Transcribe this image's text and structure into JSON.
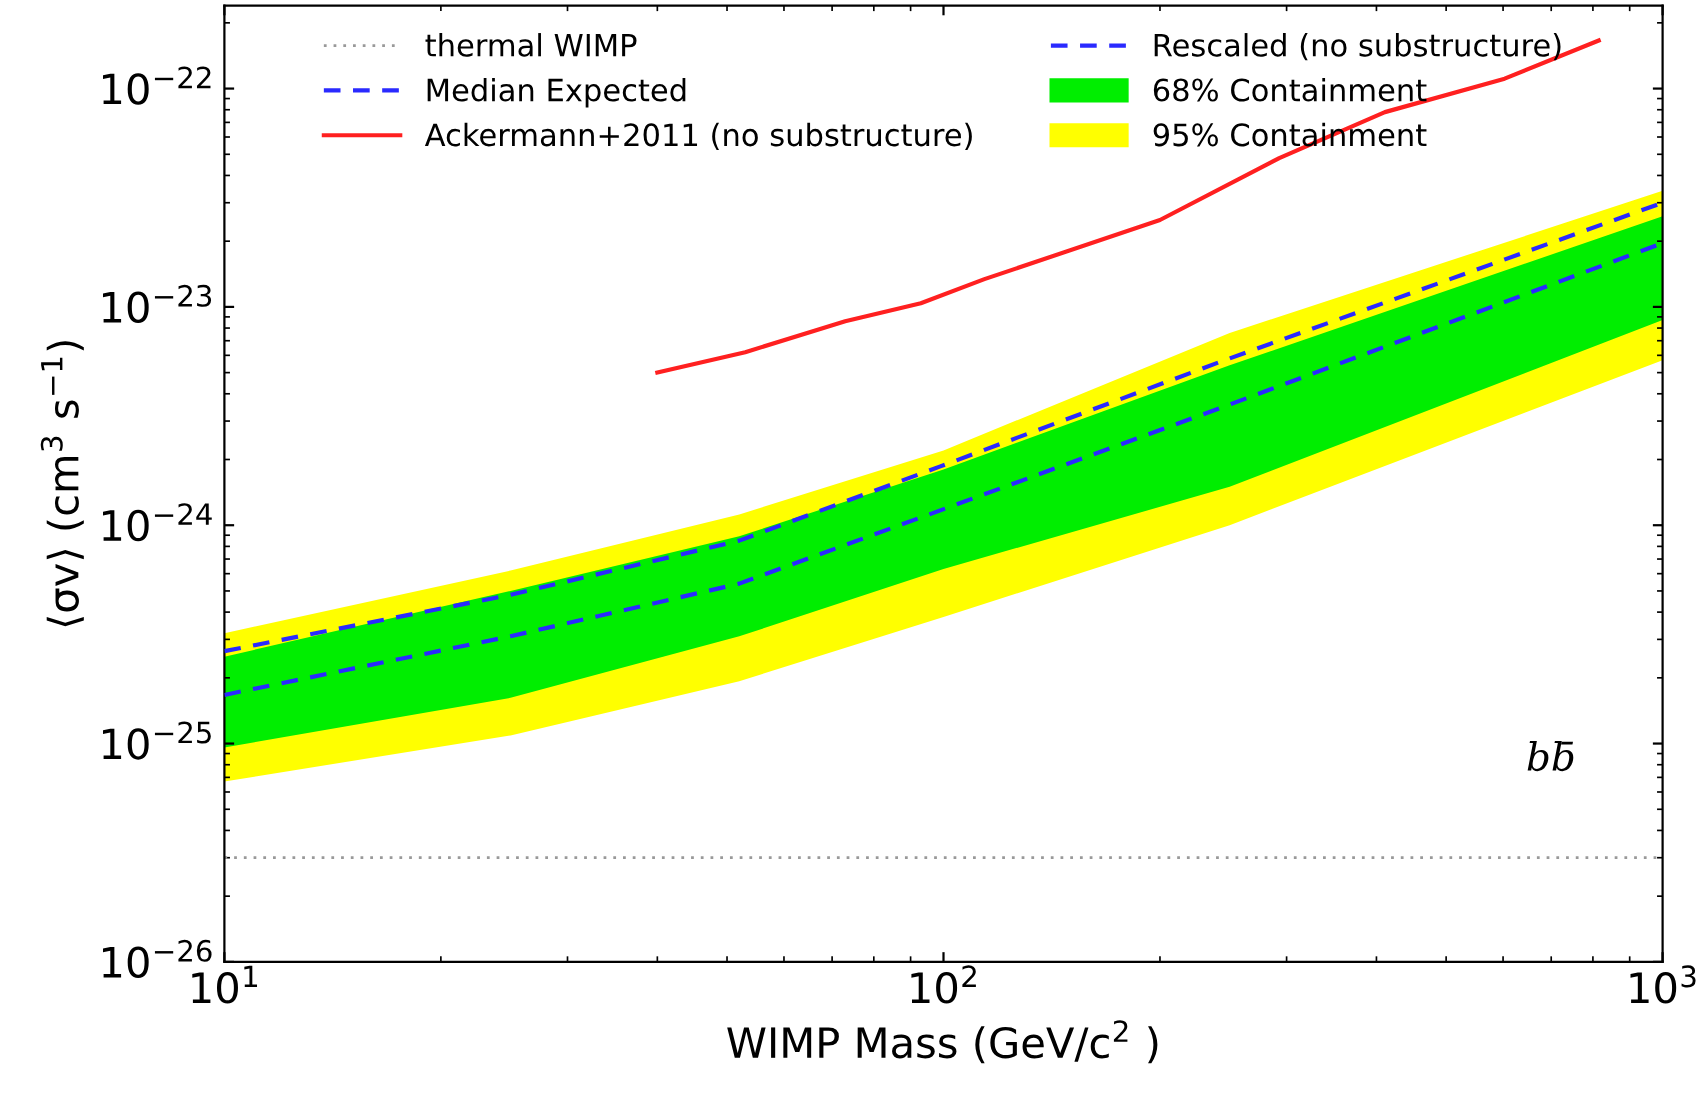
{
  "chart_data": {
    "type": "line",
    "xlabel": "WIMP Mass (GeV/c$^{2}$ )",
    "ylabel": "⟨σv⟩ (cm$^{3}$ s$^{−1}$)",
    "log": "xy",
    "grid": false,
    "legend": "top",
    "xlim": [
      10,
      1000
    ],
    "ylim": [
      1e-26,
      2.4e-22
    ],
    "xticks": [
      {
        "value": 10,
        "label": "10$^{1}$"
      },
      {
        "value": 100,
        "label": "10$^{2}$"
      },
      {
        "value": 1000,
        "label": "10$^{3}$"
      }
    ],
    "yticks": [
      {
        "value": 1e-26,
        "label": "10$^{−26}$"
      },
      {
        "value": 1e-25,
        "label": "10$^{−25}$"
      },
      {
        "value": 1e-24,
        "label": "10$^{−24}$"
      },
      {
        "value": 1e-23,
        "label": "10$^{−23}$"
      },
      {
        "value": 1e-22,
        "label": "10$^{−22}$"
      }
    ],
    "ref_lines": [
      {
        "axis": "y",
        "value": 3e-26,
        "label": "thermal WIMP",
        "color": "#999999",
        "line_style": "dotted"
      }
    ],
    "annotations": [
      "bb̄"
    ],
    "series": [
      {
        "name": "Median Expected",
        "color": "#2a2aff",
        "line_style": "dashed",
        "x": [
          10,
          25,
          52,
          99,
          246,
          1000
        ],
        "values": [
          1.67e-25,
          3.1e-25,
          5.4e-25,
          1.17e-24,
          3.5e-24,
          1.96e-23
        ]
      },
      {
        "name": "Ackermann+2011 (no substructure)",
        "color": "#ff2020",
        "line_style": "solid",
        "x": [
          40,
          53,
          73,
          93,
          114,
          200,
          293,
          411,
          603,
          815
        ],
        "values": [
          5e-24,
          6.2e-24,
          8.6e-24,
          1.04e-23,
          1.34e-23,
          2.5e-23,
          4.8e-23,
          7.8e-23,
          1.11e-22,
          1.66e-22
        ]
      },
      {
        "name": "Rescaled (no substructure)",
        "color": "#2a2aff",
        "line_style": "dashed",
        "x": [
          10,
          25,
          52,
          99,
          246,
          1000
        ],
        "values": [
          2.65e-25,
          4.8e-25,
          8.5e-25,
          1.86e-24,
          5.7e-24,
          3e-23
        ]
      },
      {
        "name": "68% Containment",
        "type": "area",
        "color": "#00ee00",
        "x": [
          10,
          25,
          52,
          100,
          250,
          1000
        ],
        "values": [
          null,
          null,
          null,
          null,
          null,
          null
        ],
        "lower": [
          9.6e-26,
          1.62e-25,
          3.1e-25,
          6.3e-25,
          1.5e-24,
          8.7e-24
        ],
        "upper": [
          2.5e-25,
          5e-25,
          8.9e-25,
          1.8e-24,
          5.4e-24,
          2.6e-23
        ]
      },
      {
        "name": "95% Containment",
        "type": "area",
        "color": "#ffff00",
        "x": [
          10,
          25,
          52,
          100,
          250,
          1000
        ],
        "values": [
          null,
          null,
          null,
          null,
          null,
          null
        ],
        "lower": [
          6.7e-26,
          1.09e-25,
          1.93e-25,
          3.8e-25,
          1e-24,
          5.7e-24
        ],
        "upper": [
          3.2e-25,
          6.2e-25,
          1.12e-24,
          2.2e-24,
          7.6e-24,
          3.4e-23
        ]
      }
    ]
  }
}
